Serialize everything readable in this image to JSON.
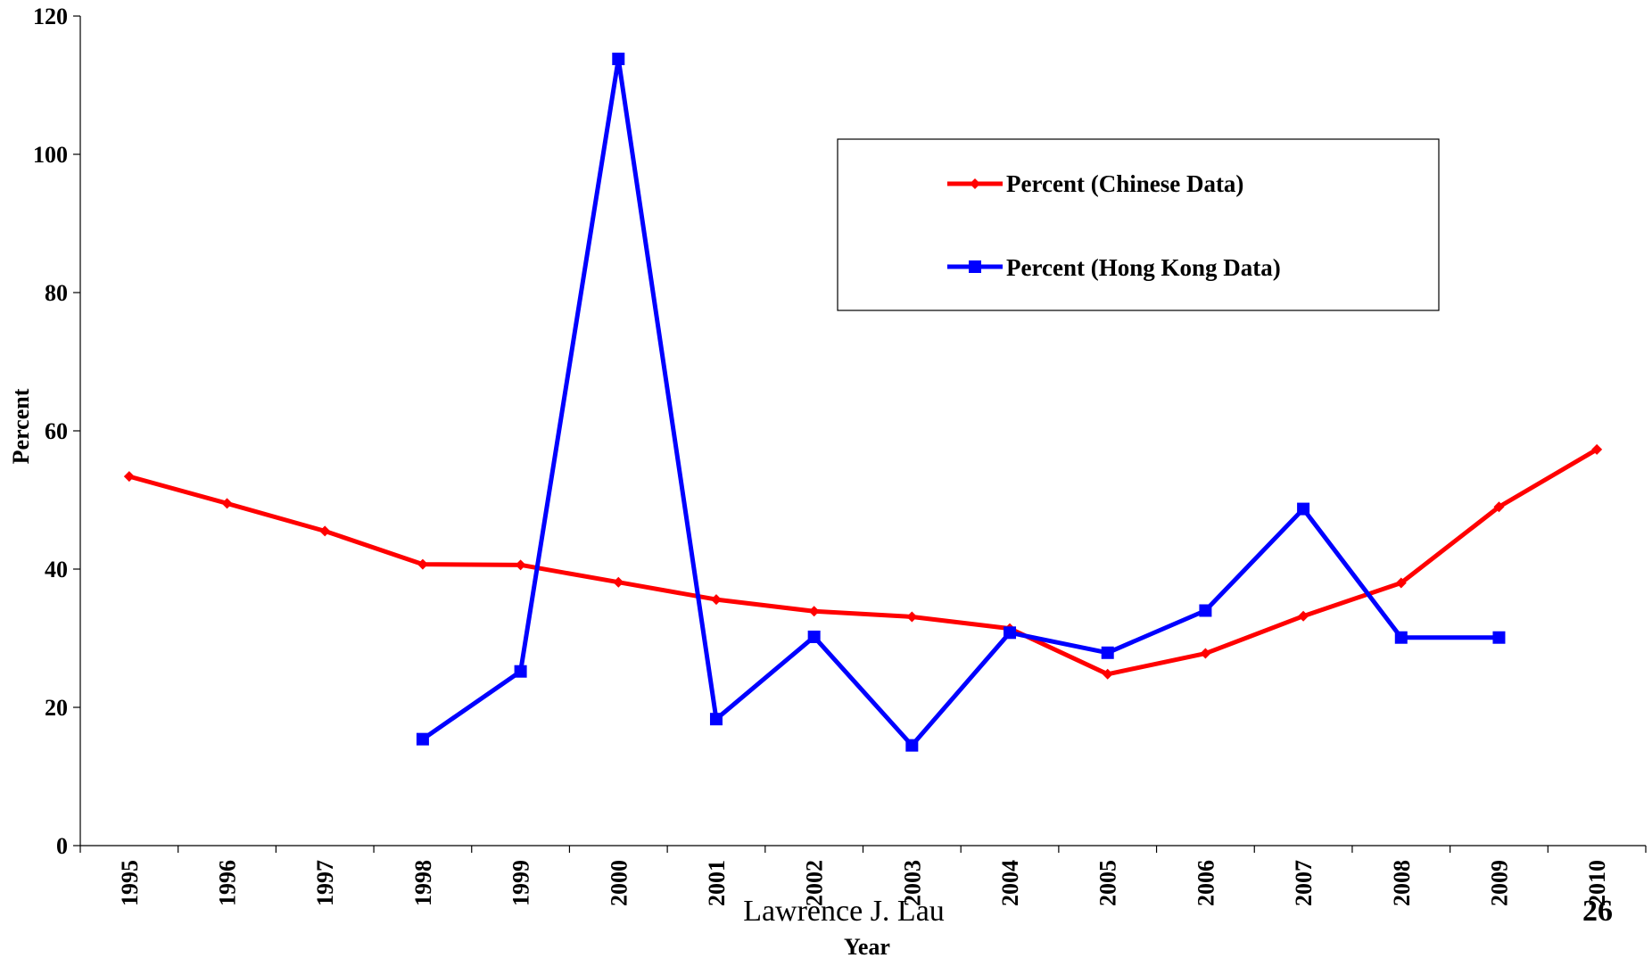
{
  "chart_data": {
    "type": "line",
    "title": "",
    "xlabel": "Year",
    "ylabel": "Percent",
    "categories": [
      "1995",
      "1996",
      "1997",
      "1998",
      "1999",
      "2000",
      "2001",
      "2002",
      "2003",
      "2004",
      "2005",
      "2006",
      "2007",
      "2008",
      "2009",
      "2010"
    ],
    "ylim": [
      0,
      120
    ],
    "yticks": [
      0,
      20,
      40,
      60,
      80,
      100,
      120
    ],
    "grid": false,
    "legend_position": "top-right",
    "series": [
      {
        "name": "Percent (Chinese Data)",
        "color": "#ff0000",
        "marker": "diamond",
        "values": [
          53.4,
          49.5,
          45.5,
          40.7,
          40.6,
          38.1,
          35.6,
          33.9,
          33.1,
          31.4,
          24.8,
          27.8,
          33.2,
          38.0,
          49.0,
          57.3
        ]
      },
      {
        "name": "Percent (Hong Kong Data)",
        "color": "#0000ff",
        "marker": "square",
        "values": [
          null,
          null,
          null,
          15.4,
          25.2,
          113.8,
          18.3,
          30.2,
          14.5,
          30.8,
          27.9,
          34.0,
          48.7,
          30.1,
          30.1,
          null
        ]
      }
    ]
  },
  "footer": {
    "author": "Lawrence J. Lau",
    "page_number": "26"
  }
}
